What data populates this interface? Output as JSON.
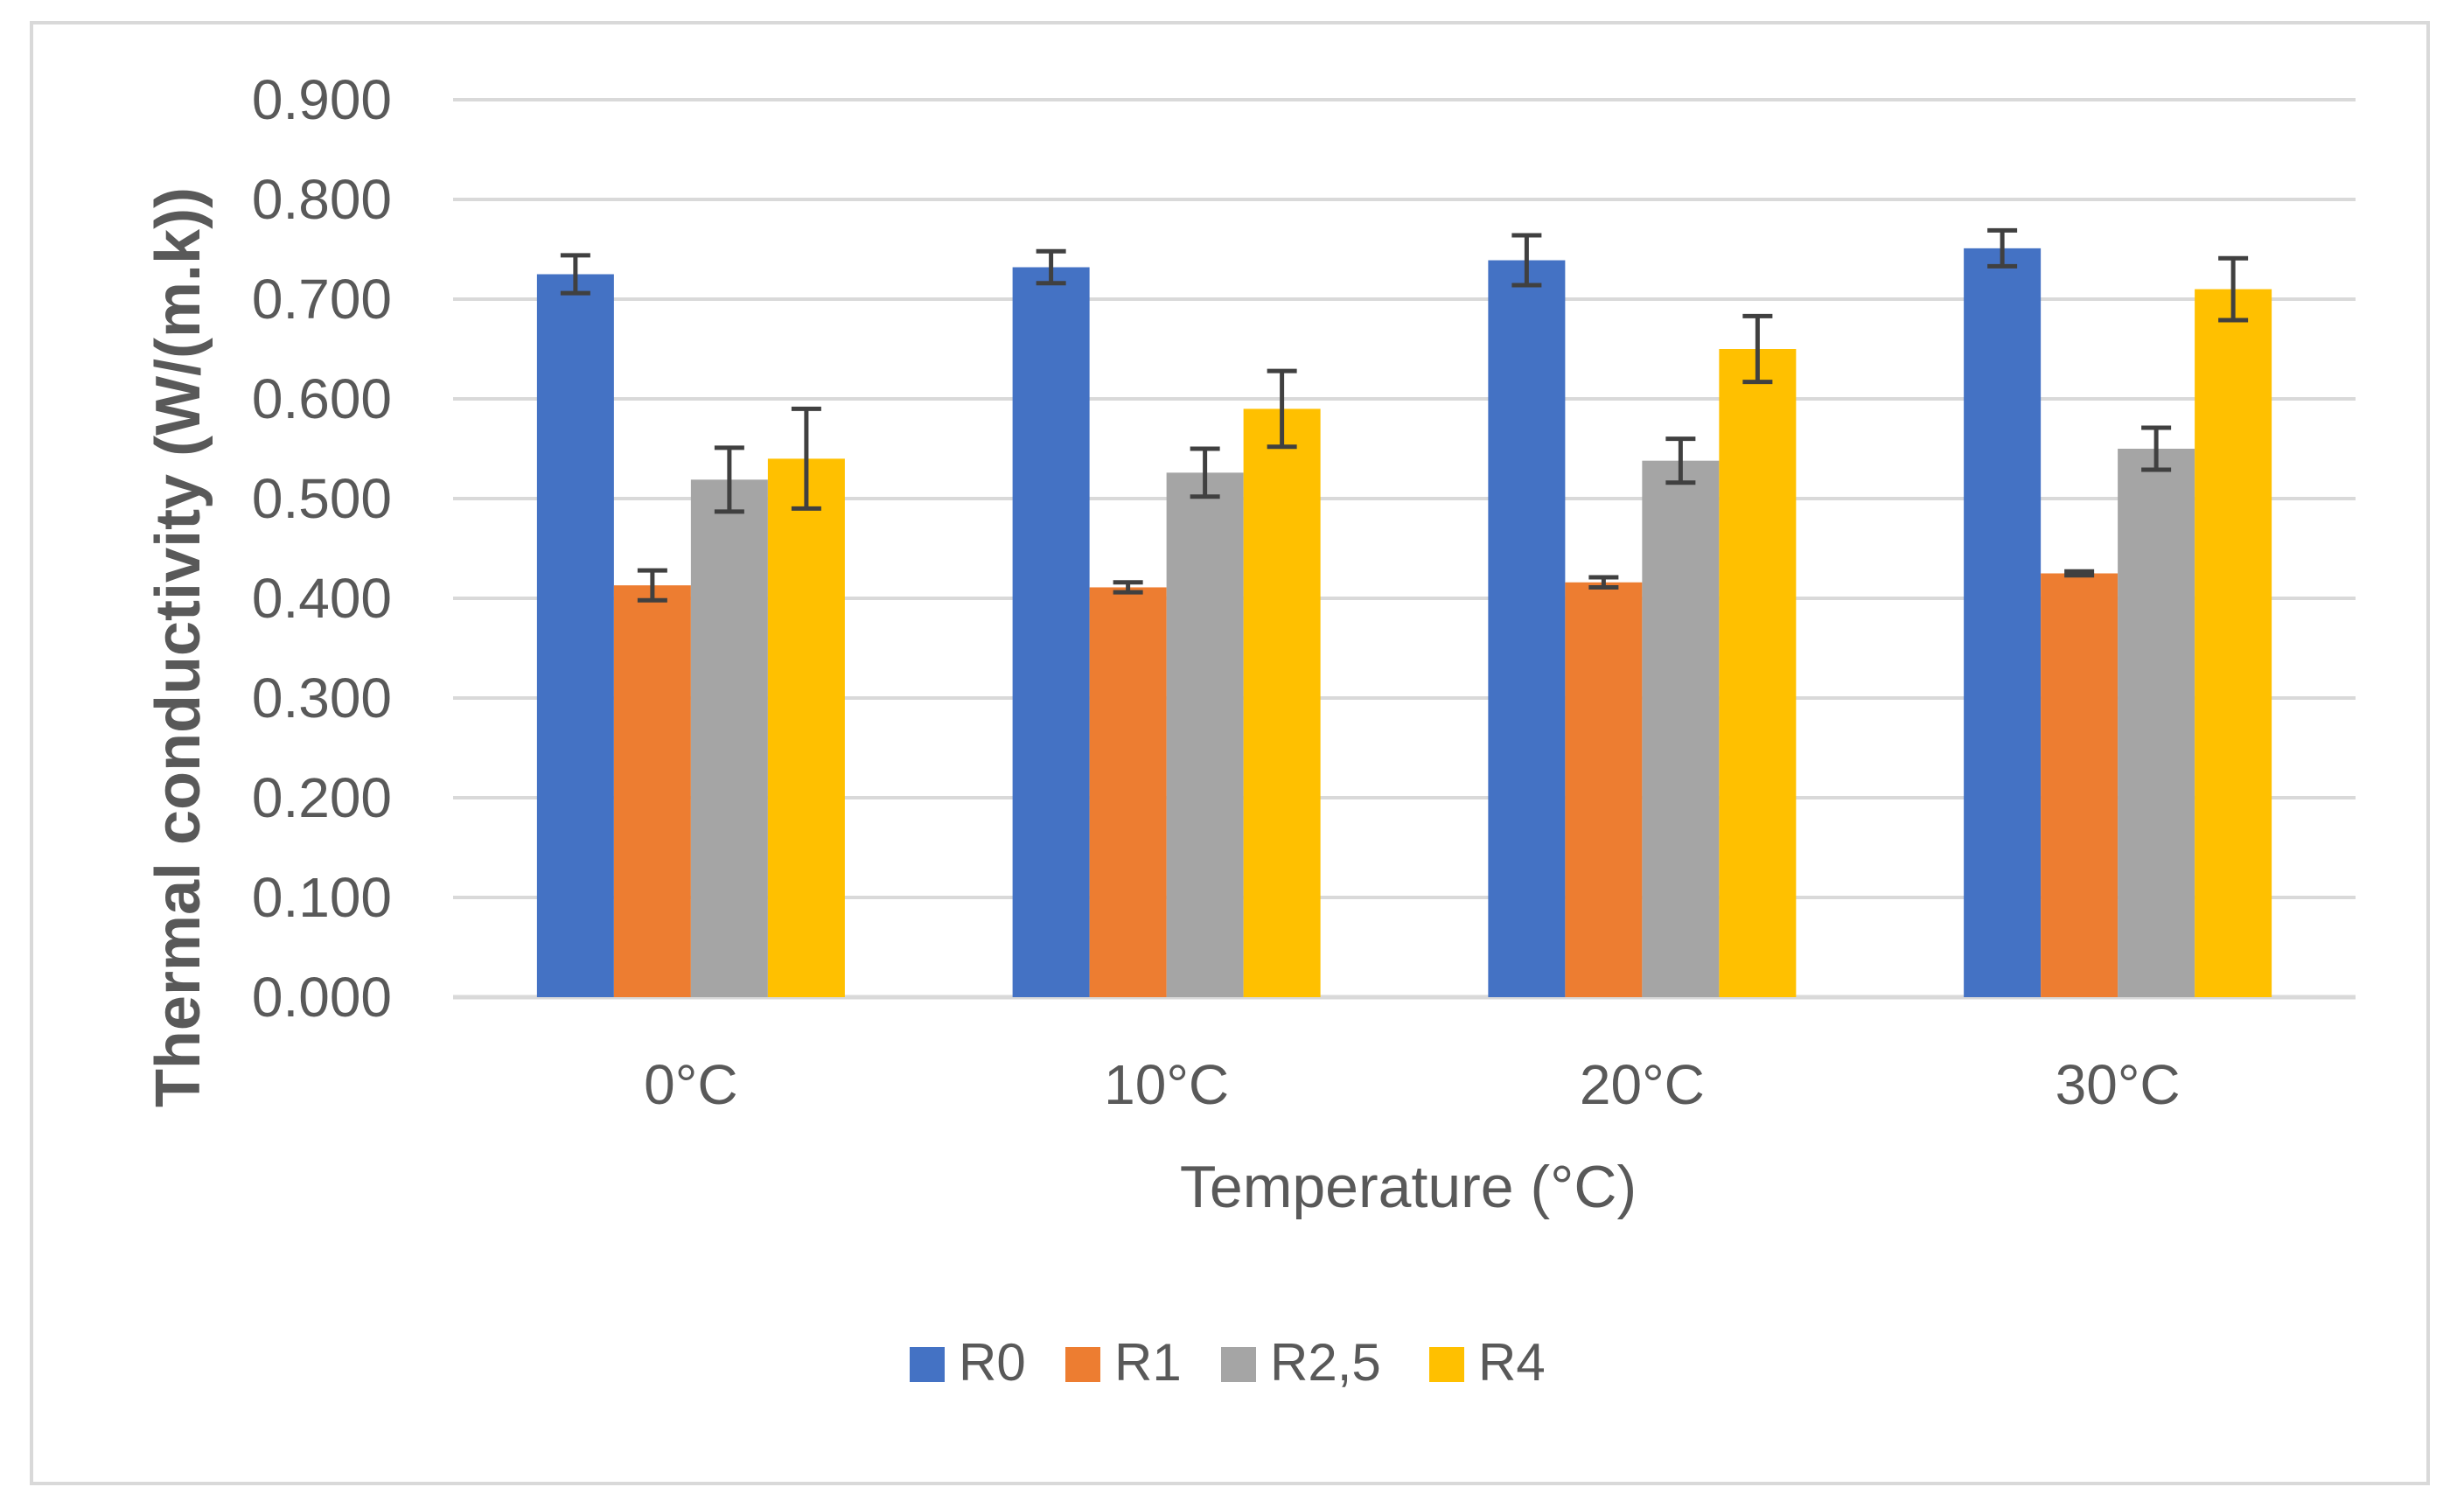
{
  "chart_data": {
    "type": "bar",
    "title": "",
    "xlabel": "Temperature (°C)",
    "ylabel": "Thermal conductivity (W/(m.k))",
    "categories": [
      "0°C",
      "10°C",
      "20°C",
      "30°C"
    ],
    "series": [
      {
        "name": "R0",
        "color": "#4472C4",
        "values": [
          0.725,
          0.732,
          0.739,
          0.751
        ],
        "errors": [
          0.019,
          0.016,
          0.025,
          0.018
        ]
      },
      {
        "name": "R1",
        "color": "#ED7D31",
        "values": [
          0.413,
          0.411,
          0.416,
          0.425
        ],
        "errors": [
          0.015,
          0.005,
          0.005,
          0.002
        ]
      },
      {
        "name": "R2,5",
        "color": "#A5A5A5",
        "values": [
          0.519,
          0.526,
          0.538,
          0.55
        ],
        "errors": [
          0.032,
          0.024,
          0.022,
          0.021
        ]
      },
      {
        "name": "R4",
        "color": "#FFC000",
        "values": [
          0.54,
          0.59,
          0.65,
          0.71
        ],
        "errors": [
          0.05,
          0.038,
          0.033,
          0.031
        ]
      }
    ],
    "ylim": [
      0,
      0.9
    ],
    "yticks": [
      "0.000",
      "0.100",
      "0.200",
      "0.300",
      "0.400",
      "0.500",
      "0.600",
      "0.700",
      "0.800",
      "0.900"
    ],
    "grid": true,
    "legend_position": "bottom",
    "gridline_color": "#d9d9d9",
    "errorbar_color": "#404040",
    "text_color": "#595959"
  }
}
